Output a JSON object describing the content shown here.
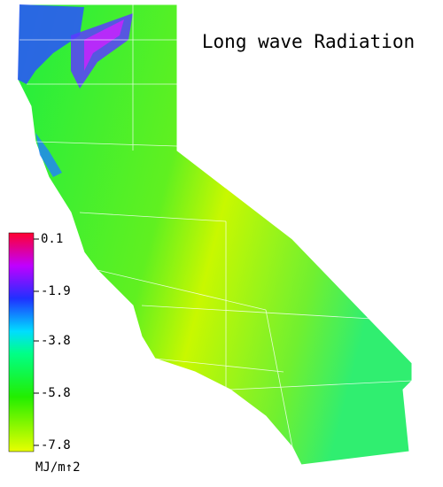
{
  "map": {
    "title": "Long wave Radiation",
    "colorbar": {
      "ticks": [
        0.1,
        -1.9,
        -3.8,
        -5.8,
        -7.8
      ],
      "unit": "MJ/m↑2"
    }
  }
}
